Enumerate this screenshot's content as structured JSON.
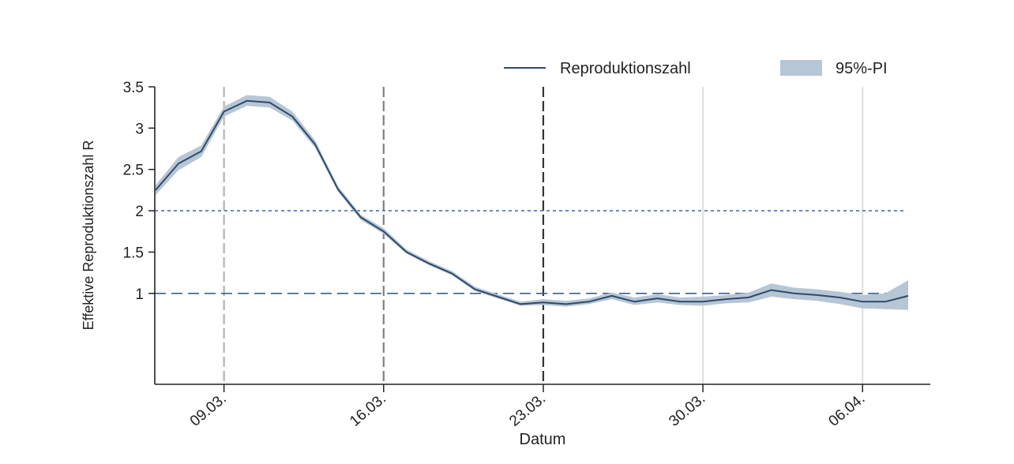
{
  "chart_data": {
    "type": "line",
    "title": "",
    "xlabel": "Datum",
    "ylabel": "Effektive Reproduktionszahl R",
    "x_ticks": [
      "09.03.",
      "16.03.",
      "23.03.",
      "30.03.",
      "06.04."
    ],
    "y_ticks": [
      "3.5",
      "3",
      "2.5",
      "2",
      "1.5",
      "1"
    ],
    "ylim": [
      -0.1,
      3.5
    ],
    "reference_lines": [
      {
        "y": 2,
        "style": "dotted",
        "color": "#4a6fb5"
      },
      {
        "y": 1,
        "style": "dashed",
        "color": "#3e5f8a"
      }
    ],
    "vertical_markers": [
      {
        "x": "09.03.",
        "style": "dashed",
        "color": "#b3b3b3"
      },
      {
        "x": "16.03.",
        "style": "dashed",
        "color": "#808080"
      },
      {
        "x": "23.03.",
        "style": "dashed",
        "color": "#333333"
      },
      {
        "x": "30.03.",
        "style": "solid",
        "color": "#dedede"
      },
      {
        "x": "06.04.",
        "style": "solid",
        "color": "#dedede"
      }
    ],
    "x": [
      "06.03.",
      "07.03.",
      "08.03.",
      "09.03.",
      "10.03.",
      "11.03.",
      "12.03.",
      "13.03.",
      "14.03.",
      "15.03.",
      "16.03.",
      "17.03.",
      "18.03.",
      "19.03.",
      "20.03.",
      "21.03.",
      "22.03.",
      "23.03.",
      "24.03.",
      "25.03.",
      "26.03.",
      "27.03.",
      "28.03.",
      "29.03.",
      "30.03.",
      "31.03.",
      "01.04.",
      "02.04.",
      "03.04.",
      "04.04.",
      "05.04.",
      "06.04.",
      "07.04.",
      "08.04."
    ],
    "series": [
      {
        "name": "Reproduktionszahl",
        "color": "#2e4a6b",
        "values": [
          2.25,
          2.57,
          2.72,
          3.2,
          3.33,
          3.31,
          3.14,
          2.8,
          2.26,
          1.92,
          1.75,
          1.5,
          1.36,
          1.24,
          1.05,
          0.96,
          0.87,
          0.89,
          0.87,
          0.9,
          0.97,
          0.9,
          0.94,
          0.9,
          0.9,
          0.93,
          0.95,
          1.04,
          1.0,
          0.98,
          0.95,
          0.9,
          0.9,
          0.97
        ]
      }
    ],
    "intervals": [
      {
        "name": "95%-PI",
        "color": "#b7c6d5",
        "lower": [
          2.19,
          2.49,
          2.65,
          3.14,
          3.27,
          3.25,
          3.09,
          2.76,
          2.23,
          1.89,
          1.72,
          1.48,
          1.34,
          1.22,
          1.03,
          0.94,
          0.85,
          0.86,
          0.84,
          0.87,
          0.93,
          0.86,
          0.89,
          0.86,
          0.85,
          0.88,
          0.89,
          0.96,
          0.93,
          0.91,
          0.87,
          0.82,
          0.81,
          0.8
        ],
        "upper": [
          2.31,
          2.65,
          2.79,
          3.26,
          3.4,
          3.38,
          3.2,
          2.85,
          2.3,
          1.95,
          1.79,
          1.53,
          1.39,
          1.27,
          1.08,
          0.99,
          0.9,
          0.93,
          0.91,
          0.94,
          1.01,
          0.95,
          0.99,
          0.95,
          0.96,
          0.98,
          1.01,
          1.12,
          1.07,
          1.05,
          1.02,
          0.98,
          1.0,
          1.16
        ]
      }
    ],
    "legend_position": "top-right",
    "grid": false
  }
}
